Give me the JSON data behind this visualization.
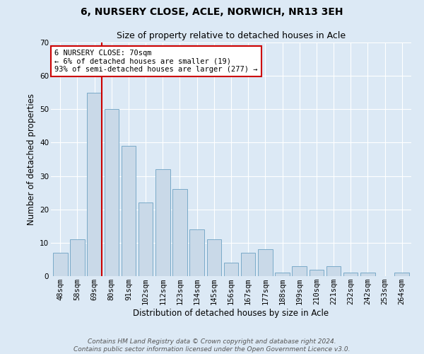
{
  "title": "6, NURSERY CLOSE, ACLE, NORWICH, NR13 3EH",
  "subtitle": "Size of property relative to detached houses in Acle",
  "xlabel": "Distribution of detached houses by size in Acle",
  "ylabel": "Number of detached properties",
  "bar_labels": [
    "48sqm",
    "58sqm",
    "69sqm",
    "80sqm",
    "91sqm",
    "102sqm",
    "112sqm",
    "123sqm",
    "134sqm",
    "145sqm",
    "156sqm",
    "167sqm",
    "177sqm",
    "188sqm",
    "199sqm",
    "210sqm",
    "221sqm",
    "232sqm",
    "242sqm",
    "253sqm",
    "264sqm"
  ],
  "bar_values": [
    7,
    11,
    55,
    50,
    39,
    22,
    32,
    26,
    14,
    11,
    4,
    7,
    8,
    1,
    3,
    2,
    3,
    1,
    1,
    0,
    1
  ],
  "bar_color": "#c9d9e8",
  "bar_edge_color": "#7aaac8",
  "vline_index": 2,
  "vline_color": "#cc0000",
  "annotation_text": "6 NURSERY CLOSE: 70sqm\n← 6% of detached houses are smaller (19)\n93% of semi-detached houses are larger (277) →",
  "annotation_box_color": "#ffffff",
  "annotation_box_edge": "#cc0000",
  "ylim": [
    0,
    70
  ],
  "yticks": [
    0,
    10,
    20,
    30,
    40,
    50,
    60,
    70
  ],
  "bg_color": "#dce9f5",
  "plot_bg_color": "#dce9f5",
  "footer": "Contains HM Land Registry data © Crown copyright and database right 2024.\nContains public sector information licensed under the Open Government Licence v3.0.",
  "title_fontsize": 10,
  "subtitle_fontsize": 9,
  "xlabel_fontsize": 8.5,
  "ylabel_fontsize": 8.5,
  "tick_fontsize": 7.5,
  "footer_fontsize": 6.5
}
